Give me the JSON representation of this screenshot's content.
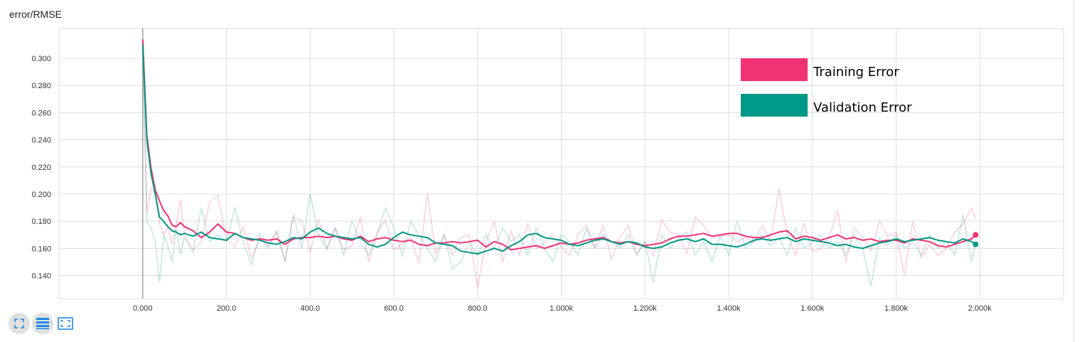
{
  "title": "error/RMSE",
  "toolbar": {
    "buttons": [
      {
        "name": "fullscreen-icon"
      },
      {
        "name": "lines-icon"
      },
      {
        "name": "fit-domain-icon"
      }
    ]
  },
  "colors": {
    "training": "#f03274",
    "validation": "#009886",
    "grid": "#dedede"
  },
  "chart_data": {
    "type": "line",
    "title": "error/RMSE",
    "xlabel": "",
    "ylabel": "",
    "xlim": [
      -200,
      2200
    ],
    "ylim": [
      0.123,
      0.322
    ],
    "xticks": [
      0,
      200,
      400,
      600,
      800,
      1000,
      1200,
      1400,
      1600,
      1800,
      2000
    ],
    "xtick_labels": [
      "0.000",
      "200.0",
      "400.0",
      "600.0",
      "800.0",
      "1.000k",
      "1.200k",
      "1.400k",
      "1.600k",
      "1.800k",
      "2.000k"
    ],
    "yticks": [
      0.14,
      0.16,
      0.18,
      0.2,
      0.22,
      0.24,
      0.26,
      0.28,
      0.3
    ],
    "ytick_labels": [
      "0.140",
      "0.160",
      "0.180",
      "0.200",
      "0.220",
      "0.240",
      "0.260",
      "0.280",
      "0.300"
    ],
    "grid": true,
    "legend": {
      "placement": "top-right",
      "entries": [
        "Training Error",
        "Validation Error"
      ]
    },
    "series": [
      {
        "name": "Training Error",
        "color": "#f03274",
        "x": [
          0,
          10,
          20,
          30,
          40,
          50,
          60,
          70,
          80,
          90,
          100,
          120,
          140,
          160,
          180,
          200,
          220,
          240,
          260,
          280,
          300,
          320,
          340,
          360,
          380,
          400,
          420,
          440,
          460,
          480,
          500,
          520,
          540,
          560,
          580,
          600,
          620,
          640,
          660,
          680,
          700,
          720,
          740,
          760,
          780,
          800,
          820,
          840,
          860,
          880,
          900,
          920,
          940,
          960,
          980,
          1000,
          1020,
          1040,
          1060,
          1080,
          1100,
          1120,
          1140,
          1160,
          1180,
          1200,
          1220,
          1240,
          1260,
          1280,
          1300,
          1320,
          1340,
          1360,
          1380,
          1400,
          1420,
          1440,
          1460,
          1480,
          1500,
          1520,
          1540,
          1560,
          1580,
          1600,
          1620,
          1640,
          1660,
          1680,
          1700,
          1720,
          1740,
          1760,
          1780,
          1800,
          1820,
          1840,
          1860,
          1880,
          1900,
          1920,
          1940,
          1960,
          1980,
          1990
        ],
        "values": [
          0.314,
          0.243,
          0.219,
          0.203,
          0.195,
          0.188,
          0.184,
          0.177,
          0.176,
          0.179,
          0.176,
          0.173,
          0.168,
          0.172,
          0.178,
          0.172,
          0.171,
          0.168,
          0.166,
          0.167,
          0.166,
          0.167,
          0.163,
          0.167,
          0.168,
          0.168,
          0.169,
          0.168,
          0.169,
          0.167,
          0.166,
          0.169,
          0.165,
          0.167,
          0.168,
          0.166,
          0.165,
          0.166,
          0.163,
          0.162,
          0.164,
          0.164,
          0.165,
          0.164,
          0.165,
          0.166,
          0.161,
          0.165,
          0.163,
          0.159,
          0.16,
          0.161,
          0.162,
          0.16,
          0.162,
          0.164,
          0.163,
          0.164,
          0.166,
          0.167,
          0.168,
          0.165,
          0.164,
          0.165,
          0.163,
          0.162,
          0.163,
          0.164,
          0.167,
          0.169,
          0.169,
          0.17,
          0.171,
          0.169,
          0.17,
          0.171,
          0.171,
          0.169,
          0.168,
          0.168,
          0.17,
          0.172,
          0.173,
          0.167,
          0.169,
          0.168,
          0.166,
          0.168,
          0.17,
          0.167,
          0.168,
          0.166,
          0.167,
          0.165,
          0.166,
          0.166,
          0.164,
          0.167,
          0.166,
          0.165,
          0.162,
          0.161,
          0.163,
          0.165,
          0.167,
          0.17
        ],
        "raw_values": [
          0.314,
          0.186,
          0.205,
          0.2,
          0.178,
          0.17,
          0.176,
          0.163,
          0.178,
          0.196,
          0.17,
          0.159,
          0.165,
          0.194,
          0.199,
          0.167,
          0.161,
          0.176,
          0.153,
          0.167,
          0.162,
          0.173,
          0.151,
          0.183,
          0.18,
          0.157,
          0.182,
          0.159,
          0.175,
          0.159,
          0.162,
          0.183,
          0.15,
          0.172,
          0.181,
          0.159,
          0.163,
          0.168,
          0.149,
          0.2,
          0.156,
          0.17,
          0.155,
          0.168,
          0.17,
          0.131,
          0.165,
          0.18,
          0.15,
          0.173,
          0.155,
          0.178,
          0.16,
          0.164,
          0.17,
          0.161,
          0.155,
          0.17,
          0.177,
          0.161,
          0.177,
          0.152,
          0.168,
          0.177,
          0.156,
          0.165,
          0.155,
          0.181,
          0.172,
          0.17,
          0.156,
          0.183,
          0.177,
          0.168,
          0.169,
          0.17,
          0.165,
          0.168,
          0.164,
          0.177,
          0.165,
          0.204,
          0.17,
          0.155,
          0.178,
          0.158,
          0.16,
          0.168,
          0.188,
          0.15,
          0.175,
          0.168,
          0.158,
          0.18,
          0.169,
          0.172,
          0.14,
          0.18,
          0.153,
          0.163,
          0.155,
          0.16,
          0.172,
          0.178,
          0.19,
          0.182
        ]
      },
      {
        "name": "Validation Error",
        "color": "#009886",
        "x": [
          0,
          10,
          20,
          30,
          40,
          50,
          60,
          70,
          80,
          90,
          100,
          120,
          140,
          160,
          180,
          200,
          220,
          240,
          260,
          280,
          300,
          320,
          340,
          360,
          380,
          400,
          420,
          440,
          460,
          480,
          500,
          520,
          540,
          560,
          580,
          600,
          620,
          640,
          660,
          680,
          700,
          720,
          740,
          760,
          780,
          800,
          820,
          840,
          860,
          880,
          900,
          920,
          940,
          960,
          980,
          1000,
          1020,
          1040,
          1060,
          1080,
          1100,
          1120,
          1140,
          1160,
          1180,
          1200,
          1220,
          1240,
          1260,
          1280,
          1300,
          1320,
          1340,
          1360,
          1380,
          1400,
          1420,
          1440,
          1460,
          1480,
          1500,
          1520,
          1540,
          1560,
          1580,
          1600,
          1620,
          1640,
          1660,
          1680,
          1700,
          1720,
          1740,
          1760,
          1780,
          1800,
          1820,
          1840,
          1860,
          1880,
          1900,
          1920,
          1940,
          1960,
          1980,
          1990
        ],
        "values": [
          0.31,
          0.24,
          0.215,
          0.2,
          0.183,
          0.18,
          0.176,
          0.173,
          0.172,
          0.17,
          0.171,
          0.169,
          0.172,
          0.168,
          0.167,
          0.166,
          0.171,
          0.168,
          0.167,
          0.166,
          0.164,
          0.163,
          0.165,
          0.168,
          0.167,
          0.172,
          0.175,
          0.171,
          0.169,
          0.168,
          0.167,
          0.168,
          0.163,
          0.161,
          0.163,
          0.168,
          0.172,
          0.17,
          0.169,
          0.168,
          0.164,
          0.163,
          0.162,
          0.158,
          0.157,
          0.156,
          0.158,
          0.16,
          0.158,
          0.162,
          0.165,
          0.17,
          0.171,
          0.168,
          0.167,
          0.166,
          0.163,
          0.162,
          0.164,
          0.166,
          0.167,
          0.165,
          0.163,
          0.165,
          0.164,
          0.161,
          0.16,
          0.161,
          0.164,
          0.166,
          0.167,
          0.165,
          0.167,
          0.163,
          0.163,
          0.162,
          0.161,
          0.163,
          0.166,
          0.167,
          0.166,
          0.167,
          0.168,
          0.165,
          0.167,
          0.166,
          0.165,
          0.164,
          0.162,
          0.163,
          0.161,
          0.16,
          0.162,
          0.164,
          0.165,
          0.167,
          0.165,
          0.166,
          0.167,
          0.168,
          0.166,
          0.165,
          0.164,
          0.167,
          0.165,
          0.163
        ],
        "raw_values": [
          0.31,
          0.18,
          0.175,
          0.165,
          0.135,
          0.17,
          0.162,
          0.15,
          0.175,
          0.155,
          0.168,
          0.157,
          0.19,
          0.165,
          0.17,
          0.165,
          0.19,
          0.165,
          0.148,
          0.171,
          0.16,
          0.172,
          0.15,
          0.185,
          0.16,
          0.2,
          0.17,
          0.16,
          0.175,
          0.155,
          0.18,
          0.165,
          0.155,
          0.17,
          0.19,
          0.175,
          0.155,
          0.18,
          0.17,
          0.16,
          0.15,
          0.17,
          0.145,
          0.15,
          0.165,
          0.155,
          0.17,
          0.16,
          0.175,
          0.165,
          0.17,
          0.155,
          0.175,
          0.16,
          0.15,
          0.17,
          0.165,
          0.155,
          0.175,
          0.16,
          0.17,
          0.165,
          0.16,
          0.17,
          0.155,
          0.165,
          0.135,
          0.17,
          0.16,
          0.168,
          0.172,
          0.155,
          0.165,
          0.15,
          0.17,
          0.155,
          0.18,
          0.16,
          0.165,
          0.17,
          0.162,
          0.168,
          0.155,
          0.175,
          0.16,
          0.165,
          0.17,
          0.16,
          0.165,
          0.155,
          0.17,
          0.16,
          0.132,
          0.168,
          0.162,
          0.17,
          0.16,
          0.165,
          0.155,
          0.17,
          0.16,
          0.165,
          0.155,
          0.185,
          0.15,
          0.165
        ]
      }
    ]
  }
}
